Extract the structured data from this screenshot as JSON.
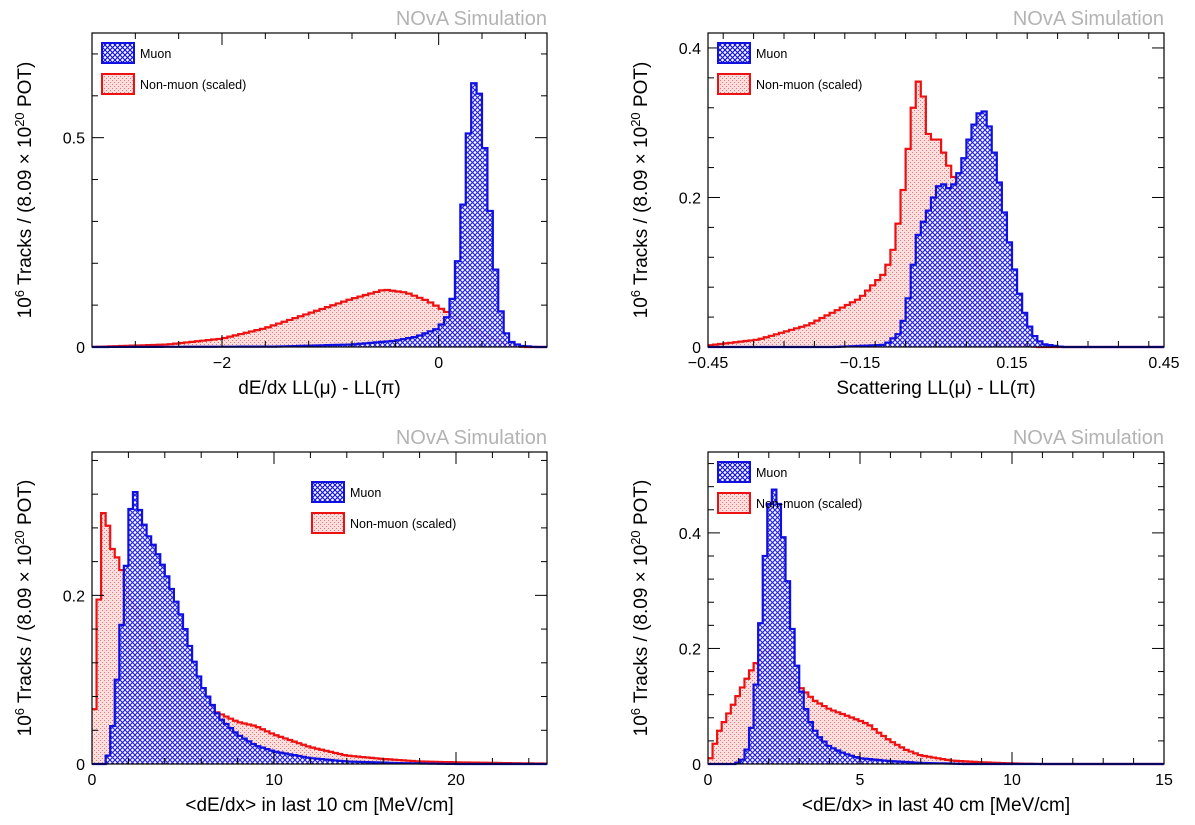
{
  "figure": {
    "watermark": "NOvA Simulation"
  },
  "colors": {
    "muon": "#1010e0",
    "nonmuon": "#ee1111",
    "muon_fill": "#3a3af0",
    "nonmuon_fill": "#f7c6c6",
    "watermark": "#b3b3b3"
  },
  "chart_data": [
    {
      "type": "histogram",
      "panel": "top-left",
      "xlabel": "dE/dx LL(μ) - LL(π)",
      "ylabel": "10^6 Tracks / (8.09 × 10^20 POT)",
      "watermark": "NOvA Simulation",
      "xlim": [
        -3.2,
        1.0
      ],
      "ylim": [
        0,
        0.75
      ],
      "xticks": [
        {
          "v": -2,
          "label": "−2"
        },
        {
          "v": 0,
          "label": "0"
        }
      ],
      "yticks": [
        {
          "v": 0,
          "label": "0"
        },
        {
          "v": 0.5,
          "label": "0.5"
        }
      ],
      "legend_position": "top-left",
      "series": [
        {
          "name": "Muon",
          "key": "muon",
          "bin_width": 0.05,
          "points": [
            [
              -3.2,
              0
            ],
            [
              -1.5,
              0.001
            ],
            [
              -0.8,
              0.006
            ],
            [
              -0.4,
              0.015
            ],
            [
              -0.2,
              0.025
            ],
            [
              0,
              0.045
            ],
            [
              0.1,
              0.08
            ],
            [
              0.15,
              0.15
            ],
            [
              0.2,
              0.26
            ],
            [
              0.25,
              0.42
            ],
            [
              0.3,
              0.6
            ],
            [
              0.35,
              0.66
            ],
            [
              0.4,
              0.55
            ],
            [
              0.45,
              0.4
            ],
            [
              0.5,
              0.25
            ],
            [
              0.55,
              0.12
            ],
            [
              0.6,
              0.05
            ],
            [
              0.65,
              0.015
            ],
            [
              0.75,
              0.003
            ],
            [
              0.9,
              0
            ]
          ]
        },
        {
          "name": "Non-muon (scaled)",
          "key": "nonmuon",
          "bin_width": 0.05,
          "points": [
            [
              -3.2,
              0
            ],
            [
              -2.5,
              0.006
            ],
            [
              -2,
              0.02
            ],
            [
              -1.6,
              0.045
            ],
            [
              -1.2,
              0.08
            ],
            [
              -0.8,
              0.115
            ],
            [
              -0.5,
              0.137
            ],
            [
              -0.3,
              0.13
            ],
            [
              -0.1,
              0.11
            ],
            [
              0,
              0.095
            ],
            [
              0.2,
              0.065
            ],
            [
              0.4,
              0.03
            ],
            [
              0.6,
              0.008
            ],
            [
              0.75,
              0.001
            ],
            [
              0.8,
              0
            ]
          ]
        }
      ]
    },
    {
      "type": "histogram",
      "panel": "top-right",
      "xlabel": "Scattering LL(μ) - LL(π)",
      "ylabel": "10^6 Tracks / (8.09 × 10^20 POT)",
      "watermark": "NOvA Simulation",
      "xlim": [
        -0.45,
        0.45
      ],
      "ylim": [
        0,
        0.42
      ],
      "xticks": [
        {
          "v": -0.45,
          "label": "−0.45"
        },
        {
          "v": -0.15,
          "label": "−0.15"
        },
        {
          "v": 0.15,
          "label": "0.15"
        },
        {
          "v": 0.45,
          "label": "0.45"
        }
      ],
      "yticks": [
        {
          "v": 0,
          "label": "0"
        },
        {
          "v": 0.2,
          "label": "0.2"
        },
        {
          "v": 0.4,
          "label": "0.4"
        }
      ],
      "legend_position": "top-left",
      "series": [
        {
          "name": "Muon",
          "key": "muon",
          "bin_width": 0.01,
          "points": [
            [
              -0.45,
              0
            ],
            [
              -0.2,
              0
            ],
            [
              -0.1,
              0.003
            ],
            [
              -0.07,
              0.02
            ],
            [
              -0.05,
              0.08
            ],
            [
              -0.04,
              0.14
            ],
            [
              -0.03,
              0.16
            ],
            [
              -0.01,
              0.19
            ],
            [
              0,
              0.21
            ],
            [
              0.01,
              0.22
            ],
            [
              0.03,
              0.21
            ],
            [
              0.05,
              0.24
            ],
            [
              0.07,
              0.29
            ],
            [
              0.09,
              0.32
            ],
            [
              0.1,
              0.31
            ],
            [
              0.11,
              0.28
            ],
            [
              0.13,
              0.2
            ],
            [
              0.15,
              0.12
            ],
            [
              0.17,
              0.055
            ],
            [
              0.19,
              0.018
            ],
            [
              0.21,
              0.004
            ],
            [
              0.25,
              0
            ]
          ]
        },
        {
          "name": "Non-muon (scaled)",
          "key": "nonmuon",
          "bin_width": 0.01,
          "points": [
            [
              -0.45,
              0.002
            ],
            [
              -0.35,
              0.01
            ],
            [
              -0.25,
              0.03
            ],
            [
              -0.15,
              0.065
            ],
            [
              -0.1,
              0.1
            ],
            [
              -0.08,
              0.14
            ],
            [
              -0.07,
              0.19
            ],
            [
              -0.06,
              0.23
            ],
            [
              -0.05,
              0.3
            ],
            [
              -0.04,
              0.34
            ],
            [
              -0.03,
              0.37
            ],
            [
              -0.02,
              0.3
            ],
            [
              -0.01,
              0.27
            ],
            [
              0,
              0.285
            ],
            [
              0.01,
              0.27
            ],
            [
              0.02,
              0.25
            ],
            [
              0.04,
              0.22
            ],
            [
              0.06,
              0.17
            ],
            [
              0.08,
              0.12
            ],
            [
              0.1,
              0.075
            ],
            [
              0.12,
              0.04
            ],
            [
              0.14,
              0.015
            ],
            [
              0.16,
              0.004
            ],
            [
              0.2,
              0
            ]
          ]
        }
      ]
    },
    {
      "type": "histogram",
      "panel": "bottom-left",
      "xlabel": "<dE/dx> in last 10 cm [MeV/cm]",
      "ylabel": "10^6 Tracks / (8.09 × 10^20 POT)",
      "watermark": "NOvA Simulation",
      "xlim": [
        0,
        25
      ],
      "ylim": [
        0,
        0.37
      ],
      "xticks": [
        {
          "v": 0,
          "label": "0"
        },
        {
          "v": 10,
          "label": "10"
        },
        {
          "v": 20,
          "label": "20"
        }
      ],
      "yticks": [
        {
          "v": 0,
          "label": "0"
        },
        {
          "v": 0.2,
          "label": "0.2"
        }
      ],
      "legend_position": "top-right",
      "series": [
        {
          "name": "Muon",
          "key": "muon",
          "bin_width": 0.25,
          "points": [
            [
              0,
              0
            ],
            [
              0.75,
              0
            ],
            [
              1,
              0.02
            ],
            [
              1.25,
              0.07
            ],
            [
              1.5,
              0.13
            ],
            [
              1.75,
              0.2
            ],
            [
              2,
              0.27
            ],
            [
              2.25,
              0.335
            ],
            [
              2.5,
              0.31
            ],
            [
              3,
              0.275
            ],
            [
              3.5,
              0.255
            ],
            [
              4,
              0.23
            ],
            [
              4.5,
              0.2
            ],
            [
              5,
              0.17
            ],
            [
              5.5,
              0.13
            ],
            [
              6,
              0.095
            ],
            [
              7,
              0.055
            ],
            [
              8,
              0.035
            ],
            [
              9,
              0.022
            ],
            [
              10,
              0.015
            ],
            [
              12,
              0.007
            ],
            [
              14,
              0.003
            ],
            [
              17,
              0.001
            ],
            [
              20,
              0
            ]
          ]
        },
        {
          "name": "Non-muon (scaled)",
          "key": "nonmuon",
          "bin_width": 0.25,
          "points": [
            [
              0,
              0.03
            ],
            [
              0.25,
              0.1
            ],
            [
              0.5,
              0.29
            ],
            [
              0.75,
              0.305
            ],
            [
              1,
              0.26
            ],
            [
              1.25,
              0.25
            ],
            [
              1.5,
              0.24
            ],
            [
              2,
              0.2
            ],
            [
              2.5,
              0.18
            ],
            [
              3,
              0.16
            ],
            [
              4,
              0.12
            ],
            [
              5,
              0.09
            ],
            [
              6,
              0.07
            ],
            [
              7,
              0.06
            ],
            [
              8,
              0.05
            ],
            [
              9,
              0.045
            ],
            [
              10,
              0.035
            ],
            [
              12,
              0.02
            ],
            [
              14,
              0.01
            ],
            [
              16,
              0.006
            ],
            [
              18,
              0.003
            ],
            [
              20,
              0.002
            ],
            [
              23,
              0.001
            ],
            [
              25,
              0.0005
            ]
          ]
        }
      ]
    },
    {
      "type": "histogram",
      "panel": "bottom-right",
      "xlabel": "<dE/dx> in last 40 cm [MeV/cm]",
      "ylabel": "10^6 Tracks / (8.09 × 10^20 POT)",
      "watermark": "NOvA Simulation",
      "xlim": [
        0,
        15
      ],
      "ylim": [
        0,
        0.54
      ],
      "xticks": [
        {
          "v": 0,
          "label": "0"
        },
        {
          "v": 5,
          "label": "5"
        },
        {
          "v": 10,
          "label": "10"
        },
        {
          "v": 15,
          "label": "15"
        }
      ],
      "yticks": [
        {
          "v": 0,
          "label": "0"
        },
        {
          "v": 0.2,
          "label": "0.2"
        },
        {
          "v": 0.4,
          "label": "0.4"
        }
      ],
      "legend_position": "top-center",
      "series": [
        {
          "name": "Muon",
          "key": "muon",
          "bin_width": 0.15,
          "points": [
            [
              0,
              0
            ],
            [
              0.9,
              0
            ],
            [
              1.2,
              0.01
            ],
            [
              1.4,
              0.05
            ],
            [
              1.6,
              0.15
            ],
            [
              1.8,
              0.3
            ],
            [
              1.95,
              0.42
            ],
            [
              2.1,
              0.48
            ],
            [
              2.25,
              0.47
            ],
            [
              2.4,
              0.43
            ],
            [
              2.6,
              0.33
            ],
            [
              2.8,
              0.22
            ],
            [
              3,
              0.14
            ],
            [
              3.3,
              0.08
            ],
            [
              3.6,
              0.05
            ],
            [
              4,
              0.03
            ],
            [
              4.5,
              0.018
            ],
            [
              5,
              0.01
            ],
            [
              6,
              0.005
            ],
            [
              7,
              0.002
            ],
            [
              8.5,
              0
            ]
          ]
        },
        {
          "name": "Non-muon (scaled)",
          "key": "nonmuon",
          "bin_width": 0.15,
          "points": [
            [
              0,
              0
            ],
            [
              0.15,
              0.02
            ],
            [
              0.3,
              0.05
            ],
            [
              0.5,
              0.07
            ],
            [
              0.8,
              0.1
            ],
            [
              1.1,
              0.13
            ],
            [
              1.4,
              0.16
            ],
            [
              1.7,
              0.185
            ],
            [
              2,
              0.2
            ],
            [
              2.3,
              0.185
            ],
            [
              2.6,
              0.16
            ],
            [
              3,
              0.135
            ],
            [
              3.5,
              0.11
            ],
            [
              4,
              0.095
            ],
            [
              4.5,
              0.085
            ],
            [
              5,
              0.075
            ],
            [
              5.3,
              0.068
            ],
            [
              5.6,
              0.055
            ],
            [
              6,
              0.04
            ],
            [
              6.5,
              0.025
            ],
            [
              7,
              0.015
            ],
            [
              8,
              0.006
            ],
            [
              9,
              0.003
            ],
            [
              10,
              0.001
            ],
            [
              11,
              0
            ]
          ]
        }
      ]
    }
  ]
}
